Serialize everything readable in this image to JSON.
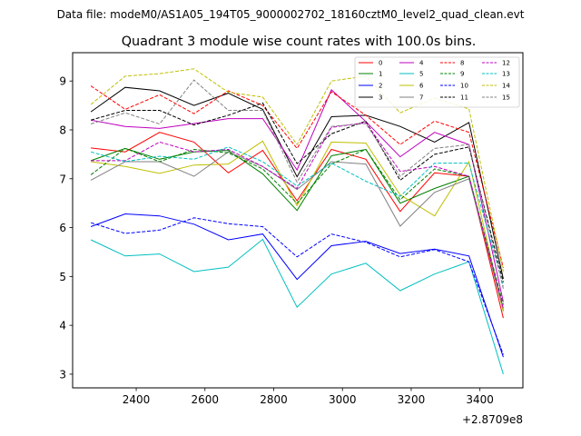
{
  "figure": {
    "suptitle": "Data file: modeM0/AS1A05_194T05_9000002702_18160cztM0_level2_quad_clean.evt",
    "offset_label": "+2.8709e8"
  },
  "chart_data": {
    "type": "line",
    "title": "Quadrant 3 module wise count rates with 100.0s bins.",
    "xlabel": "",
    "ylabel": "",
    "x_offset": 287090000,
    "xlim": [
      2215,
      3525
    ],
    "ylim": [
      2.72,
      9.58
    ],
    "xticks": [
      2400,
      2600,
      2800,
      3000,
      3200,
      3400
    ],
    "xtick_labels": [
      "2400",
      "2600",
      "2800",
      "3000",
      "3200",
      "3400"
    ],
    "yticks": [
      3,
      4,
      5,
      6,
      7,
      8,
      9
    ],
    "ytick_labels": [
      "3",
      "4",
      "5",
      "6",
      "7",
      "8",
      "9"
    ],
    "grid": false,
    "legend_position": "top-right",
    "legend_columns": 4,
    "x": [
      2268,
      2368,
      2468,
      2568,
      2668,
      2768,
      2868,
      2968,
      3068,
      3168,
      3268,
      3368,
      3468
    ],
    "series": [
      {
        "name": "0",
        "color": "#ff0000",
        "style": "solid",
        "values": [
          7.63,
          7.55,
          7.95,
          7.75,
          7.12,
          7.58,
          6.55,
          7.6,
          7.4,
          6.33,
          7.12,
          7.05,
          4.15
        ]
      },
      {
        "name": "1",
        "color": "#008000",
        "style": "solid",
        "values": [
          7.37,
          7.62,
          7.4,
          7.55,
          7.58,
          7.1,
          6.35,
          7.47,
          7.6,
          6.5,
          6.8,
          7.05,
          4.3
        ]
      },
      {
        "name": "2",
        "color": "#0000ff",
        "style": "solid",
        "values": [
          6.02,
          6.28,
          6.24,
          6.07,
          5.75,
          5.87,
          4.94,
          5.63,
          5.72,
          5.47,
          5.56,
          5.42,
          3.35
        ]
      },
      {
        "name": "3",
        "color": "#000000",
        "style": "solid",
        "values": [
          8.37,
          8.87,
          8.8,
          8.5,
          8.75,
          8.42,
          7.04,
          8.27,
          8.3,
          8.07,
          7.75,
          8.15,
          4.95
        ]
      },
      {
        "name": "4",
        "color": "#bf00bf",
        "style": "solid",
        "values": [
          8.2,
          8.07,
          8.03,
          8.13,
          8.23,
          8.23,
          7.18,
          8.82,
          8.17,
          7.45,
          7.95,
          7.7,
          4.48
        ]
      },
      {
        "name": "5",
        "color": "#00bfbf",
        "style": "solid",
        "values": [
          5.75,
          5.42,
          5.46,
          5.1,
          5.19,
          5.76,
          4.37,
          5.05,
          5.27,
          4.71,
          5.05,
          5.3,
          3.0
        ]
      },
      {
        "name": "6",
        "color": "#bfbf00",
        "style": "solid",
        "values": [
          7.35,
          7.25,
          7.11,
          7.28,
          7.3,
          7.77,
          6.45,
          7.75,
          7.73,
          6.67,
          6.24,
          7.35,
          4.28
        ]
      },
      {
        "name": "7",
        "color": "#808080",
        "style": "solid",
        "values": [
          6.97,
          7.35,
          7.35,
          7.05,
          7.55,
          7.25,
          6.78,
          7.35,
          7.3,
          6.03,
          6.72,
          7.0,
          4.34
        ]
      },
      {
        "name": "8",
        "color": "#ff0000",
        "style": "dashed",
        "values": [
          8.9,
          8.42,
          8.72,
          8.33,
          8.8,
          8.5,
          7.62,
          8.78,
          8.3,
          7.7,
          8.18,
          7.95,
          5.18
        ]
      },
      {
        "name": "9",
        "color": "#008000",
        "style": "dashed",
        "values": [
          7.08,
          7.62,
          7.35,
          7.6,
          7.53,
          7.2,
          6.5,
          7.3,
          7.6,
          6.57,
          7.2,
          7.05,
          4.42
        ]
      },
      {
        "name": "10",
        "color": "#0000ff",
        "style": "dashed",
        "values": [
          6.1,
          5.88,
          5.95,
          6.2,
          6.08,
          6.02,
          5.4,
          5.87,
          5.7,
          5.4,
          5.55,
          5.3,
          3.4
        ]
      },
      {
        "name": "11",
        "color": "#000000",
        "style": "dashed",
        "values": [
          8.2,
          8.4,
          8.4,
          8.1,
          8.3,
          8.55,
          7.31,
          7.92,
          8.18,
          6.97,
          7.5,
          7.65,
          4.88
        ]
      },
      {
        "name": "12",
        "color": "#bf00bf",
        "style": "dashed",
        "values": [
          7.37,
          7.37,
          7.75,
          7.55,
          7.6,
          7.25,
          6.8,
          8.05,
          8.15,
          7.15,
          7.25,
          7.05,
          4.35
        ]
      },
      {
        "name": "13",
        "color": "#00bfbf",
        "style": "dashed",
        "values": [
          7.55,
          7.35,
          7.46,
          7.4,
          7.65,
          7.35,
          6.85,
          7.32,
          6.95,
          6.64,
          7.32,
          7.32,
          4.8
        ]
      },
      {
        "name": "14",
        "color": "#bfbf00",
        "style": "dashed",
        "values": [
          8.52,
          9.1,
          9.15,
          9.25,
          8.77,
          8.67,
          7.7,
          9.0,
          9.1,
          8.35,
          8.65,
          8.43,
          5.1
        ]
      },
      {
        "name": "15",
        "color": "#808080",
        "style": "dashed",
        "values": [
          8.12,
          8.35,
          8.12,
          9.02,
          8.4,
          8.4,
          6.93,
          8.07,
          8.13,
          7.05,
          7.62,
          7.7,
          4.75
        ]
      }
    ]
  }
}
